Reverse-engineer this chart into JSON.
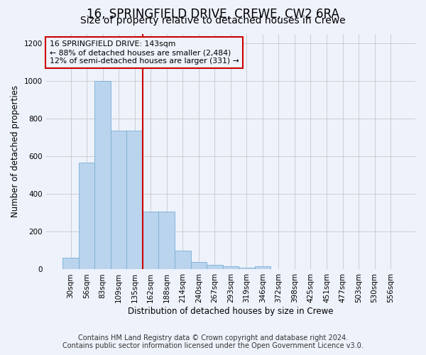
{
  "title": "16, SPRINGFIELD DRIVE, CREWE, CW2 6RA",
  "subtitle": "Size of property relative to detached houses in Crewe",
  "xlabel": "Distribution of detached houses by size in Crewe",
  "ylabel": "Number of detached properties",
  "bar_labels": [
    "30sqm",
    "56sqm",
    "83sqm",
    "109sqm",
    "135sqm",
    "162sqm",
    "188sqm",
    "214sqm",
    "240sqm",
    "267sqm",
    "293sqm",
    "319sqm",
    "346sqm",
    "372sqm",
    "398sqm",
    "425sqm",
    "451sqm",
    "477sqm",
    "503sqm",
    "530sqm",
    "556sqm"
  ],
  "bar_values": [
    62,
    565,
    1000,
    735,
    735,
    305,
    305,
    100,
    38,
    25,
    18,
    10,
    18,
    0,
    0,
    0,
    0,
    0,
    0,
    0,
    0
  ],
  "bar_color": "#bad4ed",
  "bar_edge_color": "#7aafd4",
  "vline_x": 4.5,
  "vline_color": "#cc0000",
  "annotation_lines": [
    "16 SPRINGFIELD DRIVE: 143sqm",
    "← 88% of detached houses are smaller (2,484)",
    "12% of semi-detached houses are larger (331) →"
  ],
  "annotation_box_color": "#cc0000",
  "ylim": [
    0,
    1250
  ],
  "yticks": [
    0,
    200,
    400,
    600,
    800,
    1000,
    1200
  ],
  "footer_line1": "Contains HM Land Registry data © Crown copyright and database right 2024.",
  "footer_line2": "Contains public sector information licensed under the Open Government Licence v3.0.",
  "background_color": "#eef2fb",
  "grid_color": "#c8c8c8",
  "title_fontsize": 12,
  "subtitle_fontsize": 10,
  "axis_label_fontsize": 8.5,
  "tick_fontsize": 7.5,
  "footer_fontsize": 7
}
